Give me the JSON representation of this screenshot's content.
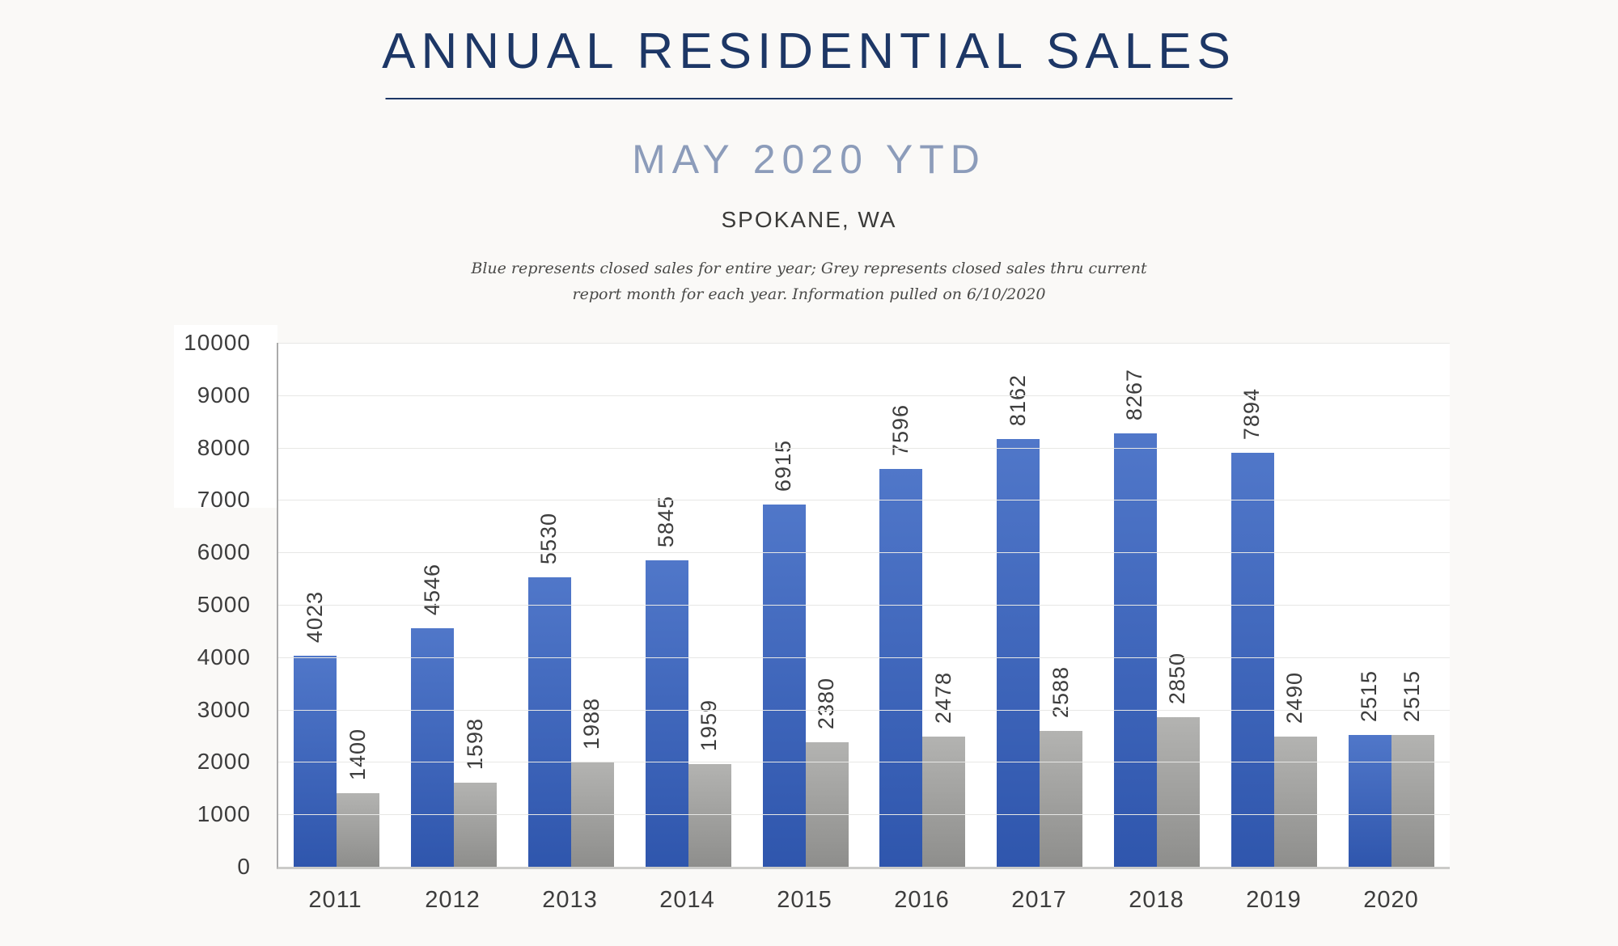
{
  "header": {
    "title": "ANNUAL RESIDENTIAL SALES",
    "subtitle": "MAY 2020 YTD",
    "location": "SPOKANE, WA",
    "note_line1": "Blue represents closed sales for entire year; Grey represents closed sales thru current",
    "note_line2": "report month for each year.  Information pulled on 6/10/2020"
  },
  "colors": {
    "title_navy": "#1d3766",
    "subtitle_blue_grey": "#8c9cba",
    "bar_blue_top": "#5077c9",
    "bar_blue_bottom": "#2f56ad",
    "bar_grey_top": "#b3b3b1",
    "bar_grey_bottom": "#8e8e8c",
    "axis_text": "#3d3d3d",
    "gridline": "#e7e7e5"
  },
  "chart_data": {
    "type": "bar",
    "title": "ANNUAL RESIDENTIAL SALES — MAY 2020 YTD — SPOKANE, WA",
    "xlabel": "",
    "ylabel": "",
    "categories": [
      "2011",
      "2012",
      "2013",
      "2014",
      "2015",
      "2016",
      "2017",
      "2018",
      "2019",
      "2020"
    ],
    "series": [
      {
        "name": "Closed sales for entire year",
        "color": "blue",
        "values": [
          4023,
          4546,
          5530,
          5845,
          6915,
          7596,
          8162,
          8267,
          7894,
          2515
        ]
      },
      {
        "name": "Closed sales thru current report month",
        "color": "grey",
        "values": [
          1400,
          1598,
          1988,
          1959,
          2380,
          2478,
          2588,
          2850,
          2490,
          2515
        ]
      }
    ],
    "ylim": [
      0,
      10000
    ],
    "yticks": [
      0,
      1000,
      2000,
      3000,
      4000,
      5000,
      6000,
      7000,
      8000,
      9000,
      10000
    ],
    "grid": "horizontal",
    "legend_position": "none",
    "value_labels": "rotated 90° above each bar"
  }
}
